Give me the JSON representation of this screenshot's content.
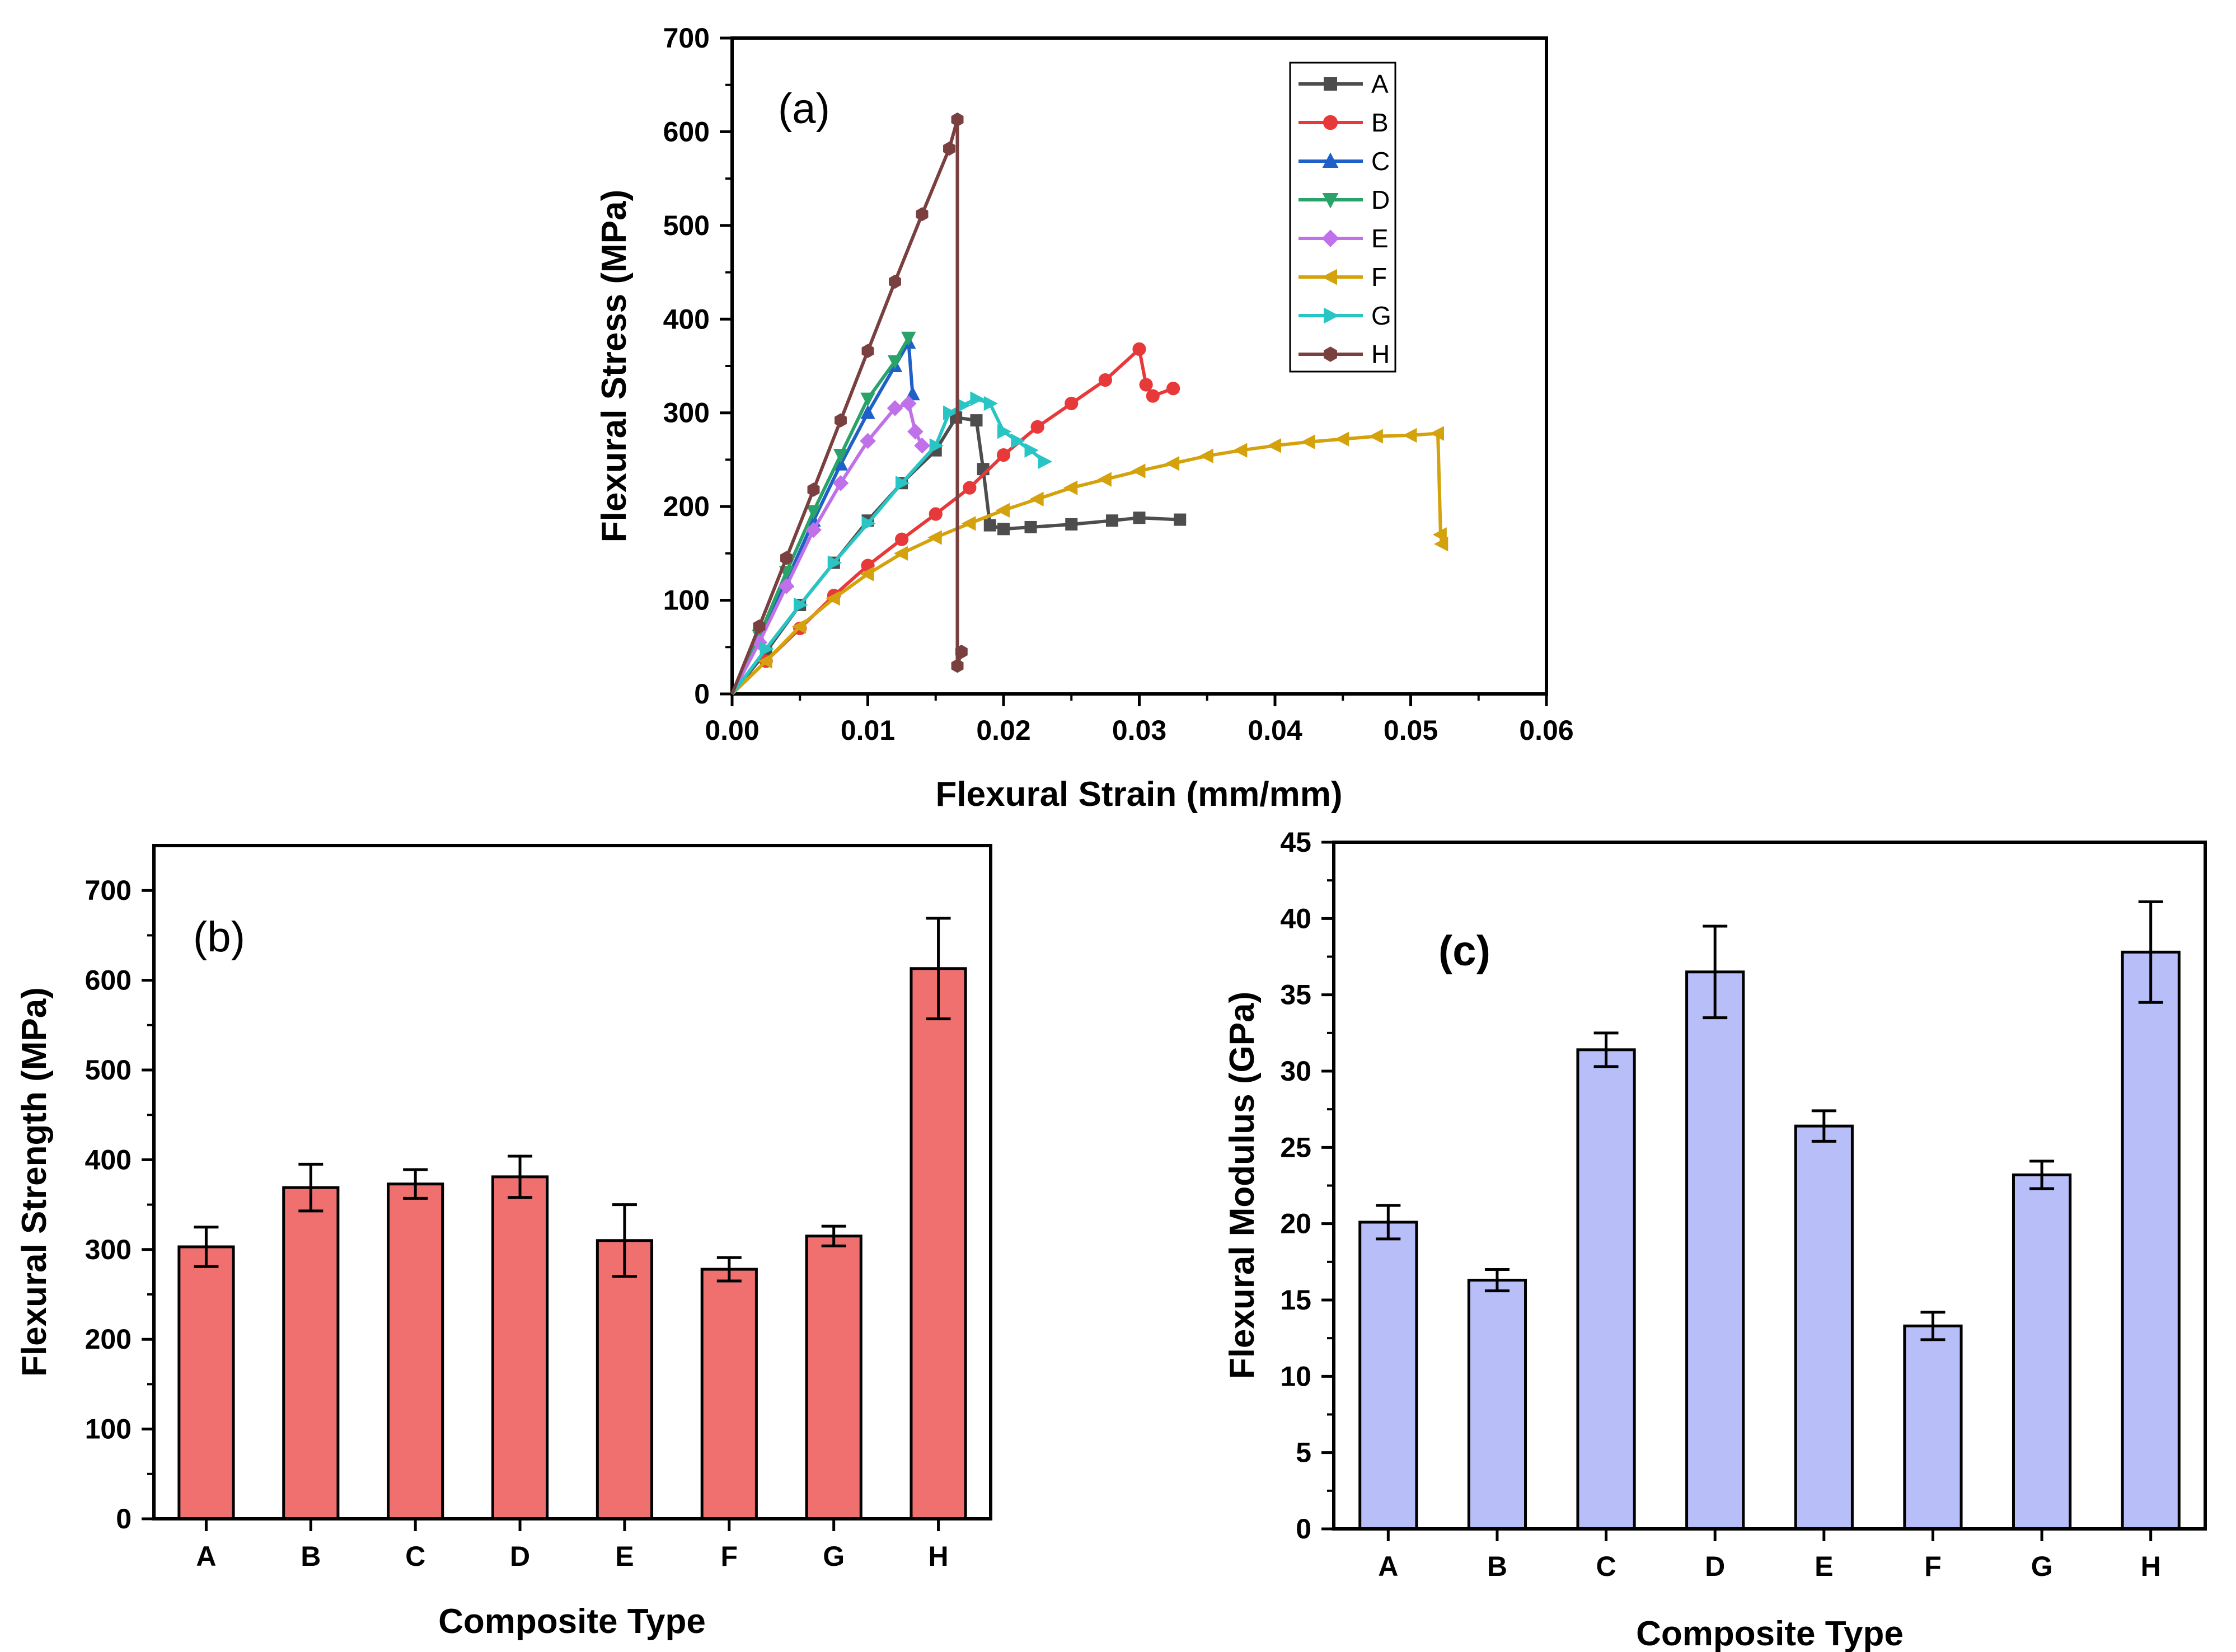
{
  "chart_data": [
    {
      "type": "line",
      "panel_label": "(a)",
      "xlabel": "Flexural Strain (mm/mm)",
      "ylabel": "Flexural Stress (MPa)",
      "xlim": [
        0,
        0.06
      ],
      "ylim": [
        0,
        700
      ],
      "xticks": [
        "0.00",
        "0.01",
        "0.02",
        "0.03",
        "0.04",
        "0.05",
        "0.06"
      ],
      "yticks": [
        "0",
        "100",
        "200",
        "300",
        "400",
        "500",
        "600",
        "700"
      ],
      "legend_position": "top-right",
      "series": [
        {
          "name": "A",
          "color": "#4d4d4d",
          "marker": "square",
          "x": [
            0,
            0.0025,
            0.005,
            0.0075,
            0.01,
            0.0125,
            0.015,
            0.0165,
            0.018,
            0.0185,
            0.019,
            0.02,
            0.022,
            0.025,
            0.028,
            0.03,
            0.033
          ],
          "y": [
            0,
            45,
            95,
            140,
            185,
            225,
            260,
            295,
            292,
            240,
            180,
            176,
            178,
            181,
            185,
            188,
            186
          ]
        },
        {
          "name": "B",
          "color": "#e8393a",
          "marker": "circle",
          "x": [
            0,
            0.0025,
            0.005,
            0.0075,
            0.01,
            0.0125,
            0.015,
            0.0175,
            0.02,
            0.0225,
            0.025,
            0.0275,
            0.03,
            0.0305,
            0.031,
            0.0325
          ],
          "y": [
            0,
            35,
            70,
            105,
            137,
            165,
            192,
            220,
            255,
            285,
            310,
            335,
            368,
            330,
            318,
            326
          ]
        },
        {
          "name": "C",
          "color": "#1f5fc8",
          "marker": "triangle-up",
          "x": [
            0,
            0.002,
            0.004,
            0.006,
            0.008,
            0.01,
            0.012,
            0.013,
            0.0133
          ],
          "y": [
            0,
            60,
            120,
            185,
            245,
            300,
            350,
            375,
            320
          ]
        },
        {
          "name": "D",
          "color": "#2aa36b",
          "marker": "triangle-down",
          "x": [
            0,
            0.002,
            0.004,
            0.006,
            0.008,
            0.01,
            0.012,
            0.013
          ],
          "y": [
            0,
            62,
            130,
            195,
            255,
            315,
            355,
            380
          ]
        },
        {
          "name": "E",
          "color": "#c070e8",
          "marker": "diamond",
          "x": [
            0,
            0.002,
            0.004,
            0.006,
            0.008,
            0.01,
            0.012,
            0.013,
            0.0135,
            0.014
          ],
          "y": [
            0,
            55,
            115,
            175,
            225,
            270,
            305,
            310,
            280,
            265
          ]
        },
        {
          "name": "F",
          "color": "#d4a20c",
          "marker": "triangle-left",
          "x": [
            0,
            0.0025,
            0.005,
            0.0075,
            0.01,
            0.0125,
            0.015,
            0.0175,
            0.02,
            0.0225,
            0.025,
            0.0275,
            0.03,
            0.0325,
            0.035,
            0.0375,
            0.04,
            0.0425,
            0.045,
            0.0475,
            0.05,
            0.052,
            0.0522,
            0.0523
          ],
          "y": [
            0,
            35,
            72,
            102,
            128,
            150,
            167,
            182,
            196,
            208,
            220,
            229,
            238,
            246,
            254,
            260,
            265,
            269,
            272,
            275,
            276,
            278,
            170,
            160
          ]
        },
        {
          "name": "G",
          "color": "#29c4c4",
          "marker": "triangle-right",
          "x": [
            0,
            0.0025,
            0.005,
            0.0075,
            0.01,
            0.0125,
            0.015,
            0.016,
            0.017,
            0.018,
            0.019,
            0.02,
            0.021,
            0.022,
            0.023
          ],
          "y": [
            0,
            48,
            95,
            140,
            182,
            225,
            265,
            300,
            308,
            315,
            310,
            280,
            270,
            260,
            248
          ]
        },
        {
          "name": "H",
          "color": "#7a4040",
          "marker": "hexagon",
          "x": [
            0,
            0.002,
            0.004,
            0.006,
            0.008,
            0.01,
            0.012,
            0.014,
            0.016,
            0.0166,
            0.0166,
            0.0169
          ],
          "y": [
            0,
            72,
            145,
            218,
            292,
            366,
            440,
            512,
            582,
            613,
            30,
            45
          ]
        }
      ]
    },
    {
      "type": "bar",
      "panel_label": "(b)",
      "xlabel": "Composite Type",
      "ylabel": "Flexural Strength (MPa)",
      "ylim": [
        0,
        750
      ],
      "yticks": [
        "0",
        "100",
        "200",
        "300",
        "400",
        "500",
        "600",
        "700"
      ],
      "categories": [
        "A",
        "B",
        "C",
        "D",
        "E",
        "F",
        "G",
        "H"
      ],
      "values": [
        303,
        369,
        373,
        381,
        310,
        278,
        315,
        613
      ],
      "errors": [
        22,
        26,
        16,
        23,
        40,
        13,
        11,
        56
      ],
      "color": "#f07070"
    },
    {
      "type": "bar",
      "panel_label": "(c)",
      "xlabel": "Composite Type",
      "ylabel": "Flexural Modulus (GPa)",
      "ylim": [
        0,
        45
      ],
      "yticks": [
        "0",
        "5",
        "10",
        "15",
        "20",
        "25",
        "30",
        "35",
        "40",
        "45"
      ],
      "categories": [
        "A",
        "B",
        "C",
        "D",
        "E",
        "F",
        "G",
        "H"
      ],
      "values": [
        20.1,
        16.3,
        31.4,
        36.5,
        26.4,
        13.3,
        23.2,
        37.8
      ],
      "errors": [
        1.1,
        0.7,
        1.1,
        3.0,
        1.0,
        0.9,
        0.9,
        3.3
      ],
      "color": "#b8bef7"
    }
  ]
}
